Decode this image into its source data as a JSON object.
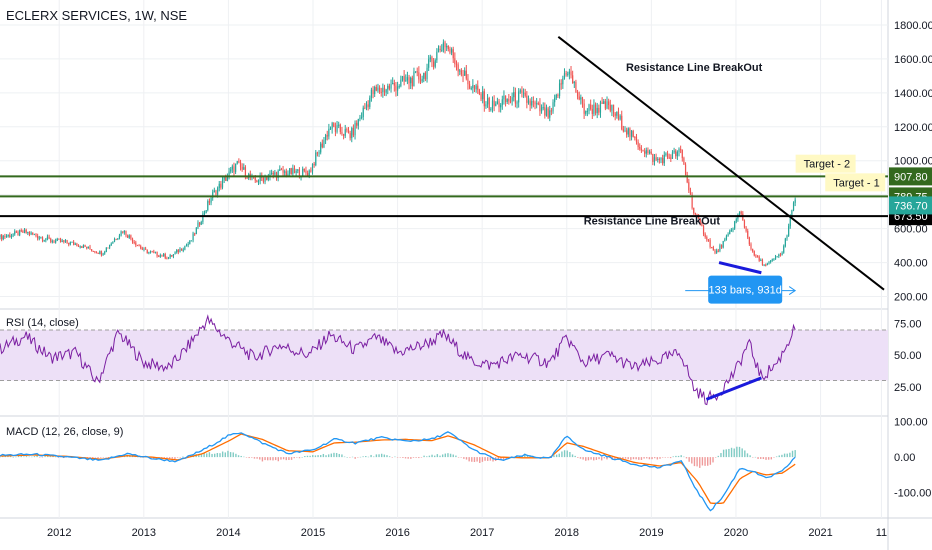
{
  "chart_data": {
    "type": "candlestick",
    "title": "ECLERX SERVICES, 1W, NSE",
    "x_ticks": [
      "2012",
      "2013",
      "2014",
      "2015",
      "2016",
      "2017",
      "2018",
      "2019",
      "2020",
      "2021",
      "11"
    ],
    "x_range": [
      2011.3,
      2021.75
    ],
    "colors": {
      "up": "#26a69a",
      "down": "#ef5350",
      "rsi": "#7b1fa2",
      "rsi_band": "#ede0f7",
      "macd": "#2196f3",
      "signal": "#ff6d00",
      "trend": "#000000",
      "target": "#33691e",
      "divergence": "#1a1adb",
      "measure": "#2196f3"
    },
    "price": {
      "ylim": [
        150,
        1900
      ],
      "y_ticks": [
        "200.00",
        "400.00",
        "600.00",
        "800.00",
        "1000.00",
        "1200.00",
        "1400.00",
        "1600.00",
        "1800.00"
      ],
      "closes": [
        {
          "date": 2011.3,
          "close": 550
        },
        {
          "date": 2011.6,
          "close": 580
        },
        {
          "date": 2011.9,
          "close": 530
        },
        {
          "date": 2012.2,
          "close": 510
        },
        {
          "date": 2012.5,
          "close": 455
        },
        {
          "date": 2012.75,
          "close": 590
        },
        {
          "date": 2013.0,
          "close": 470
        },
        {
          "date": 2013.3,
          "close": 430
        },
        {
          "date": 2013.55,
          "close": 520
        },
        {
          "date": 2013.8,
          "close": 790
        },
        {
          "date": 2014.1,
          "close": 980
        },
        {
          "date": 2014.3,
          "close": 880
        },
        {
          "date": 2014.6,
          "close": 930
        },
        {
          "date": 2014.95,
          "close": 930
        },
        {
          "date": 2015.2,
          "close": 1200
        },
        {
          "date": 2015.45,
          "close": 1150
        },
        {
          "date": 2015.7,
          "close": 1400
        },
        {
          "date": 2016.0,
          "close": 1450
        },
        {
          "date": 2016.3,
          "close": 1500
        },
        {
          "date": 2016.55,
          "close": 1700
        },
        {
          "date": 2016.85,
          "close": 1450
        },
        {
          "date": 2017.1,
          "close": 1320
        },
        {
          "date": 2017.45,
          "close": 1380
        },
        {
          "date": 2017.8,
          "close": 1260
        },
        {
          "date": 2018.0,
          "close": 1550
        },
        {
          "date": 2018.2,
          "close": 1300
        },
        {
          "date": 2018.5,
          "close": 1320
        },
        {
          "date": 2018.8,
          "close": 1120
        },
        {
          "date": 2019.05,
          "close": 1000
        },
        {
          "date": 2019.35,
          "close": 1050
        },
        {
          "date": 2019.5,
          "close": 700
        },
        {
          "date": 2019.75,
          "close": 450
        },
        {
          "date": 2019.9,
          "close": 550
        },
        {
          "date": 2020.05,
          "close": 700
        },
        {
          "date": 2020.2,
          "close": 450
        },
        {
          "date": 2020.35,
          "close": 380
        },
        {
          "date": 2020.55,
          "close": 460
        },
        {
          "date": 2020.7,
          "close": 780
        }
      ],
      "horizontal_lines": [
        {
          "value": 907.8,
          "label": "907.80",
          "kind": "target"
        },
        {
          "value": 789.75,
          "label": "789.75",
          "kind": "target"
        },
        {
          "value": 673.5,
          "label": "673.50",
          "kind": "resistance"
        }
      ],
      "last_price": {
        "value": 736.7,
        "label": "736.70"
      },
      "trendline": [
        {
          "date": 2017.9,
          "value": 1730
        },
        {
          "date": 2021.75,
          "value": 240
        }
      ],
      "divergence_line": [
        {
          "date": 2019.8,
          "value": 400
        },
        {
          "date": 2020.3,
          "value": 340
        }
      ],
      "measure": {
        "from": 2019.4,
        "to": 2020.7,
        "value": 235,
        "label": "133 bars, 931d"
      },
      "annotations": [
        {
          "text": "Resistance Line BreakOut",
          "date": 2018.7,
          "value": 1530
        },
        {
          "text": "Resistance Line BreakOut",
          "date": 2018.2,
          "value": 625
        },
        {
          "text": "Target - 2",
          "date": 2020.8,
          "value": 965
        },
        {
          "text": "Target - 1",
          "date": 2021.15,
          "value": 855
        }
      ]
    },
    "rsi": {
      "label": "RSI (14, close)",
      "ylim": [
        5,
        85
      ],
      "y_ticks": [
        "25.00",
        "50.00",
        "75.00"
      ],
      "band": [
        30,
        70
      ],
      "points": [
        {
          "date": 2011.3,
          "value": 55
        },
        {
          "date": 2011.6,
          "value": 65
        },
        {
          "date": 2011.9,
          "value": 48
        },
        {
          "date": 2012.2,
          "value": 52
        },
        {
          "date": 2012.45,
          "value": 28
        },
        {
          "date": 2012.7,
          "value": 68
        },
        {
          "date": 2013.0,
          "value": 44
        },
        {
          "date": 2013.3,
          "value": 40
        },
        {
          "date": 2013.5,
          "value": 55
        },
        {
          "date": 2013.75,
          "value": 78
        },
        {
          "date": 2014.0,
          "value": 62
        },
        {
          "date": 2014.3,
          "value": 48
        },
        {
          "date": 2014.6,
          "value": 58
        },
        {
          "date": 2014.95,
          "value": 50
        },
        {
          "date": 2015.2,
          "value": 66
        },
        {
          "date": 2015.5,
          "value": 54
        },
        {
          "date": 2015.75,
          "value": 64
        },
        {
          "date": 2016.0,
          "value": 52
        },
        {
          "date": 2016.3,
          "value": 58
        },
        {
          "date": 2016.55,
          "value": 66
        },
        {
          "date": 2016.85,
          "value": 46
        },
        {
          "date": 2017.1,
          "value": 42
        },
        {
          "date": 2017.45,
          "value": 50
        },
        {
          "date": 2017.8,
          "value": 44
        },
        {
          "date": 2018.0,
          "value": 64
        },
        {
          "date": 2018.2,
          "value": 44
        },
        {
          "date": 2018.5,
          "value": 50
        },
        {
          "date": 2018.8,
          "value": 40
        },
        {
          "date": 2019.05,
          "value": 45
        },
        {
          "date": 2019.35,
          "value": 52
        },
        {
          "date": 2019.5,
          "value": 24
        },
        {
          "date": 2019.65,
          "value": 15
        },
        {
          "date": 2019.8,
          "value": 20
        },
        {
          "date": 2020.0,
          "value": 38
        },
        {
          "date": 2020.15,
          "value": 60
        },
        {
          "date": 2020.3,
          "value": 32
        },
        {
          "date": 2020.5,
          "value": 45
        },
        {
          "date": 2020.7,
          "value": 72
        }
      ],
      "divergence_line": [
        {
          "date": 2019.65,
          "value": 15
        },
        {
          "date": 2020.3,
          "value": 32
        }
      ]
    },
    "macd": {
      "label": "MACD (12, 26, close, 9)",
      "ylim": [
        -160,
        110
      ],
      "y_ticks": [
        "100.00",
        "0.00",
        "-100.00"
      ],
      "points": [
        {
          "date": 2011.3,
          "macd": 5,
          "signal": 3
        },
        {
          "date": 2011.7,
          "macd": 8,
          "signal": 6
        },
        {
          "date": 2012.1,
          "macd": 0,
          "signal": 2
        },
        {
          "date": 2012.5,
          "macd": -10,
          "signal": -6
        },
        {
          "date": 2012.8,
          "macd": 10,
          "signal": 4
        },
        {
          "date": 2013.1,
          "macd": -4,
          "signal": 0
        },
        {
          "date": 2013.4,
          "macd": -12,
          "signal": -8
        },
        {
          "date": 2013.7,
          "macd": 20,
          "signal": 10
        },
        {
          "date": 2014.0,
          "macd": 60,
          "signal": 45
        },
        {
          "date": 2014.15,
          "macd": 70,
          "signal": 65
        },
        {
          "date": 2014.4,
          "macd": 40,
          "signal": 50
        },
        {
          "date": 2014.7,
          "macd": 10,
          "signal": 18
        },
        {
          "date": 2015.0,
          "macd": 20,
          "signal": 15
        },
        {
          "date": 2015.25,
          "macd": 50,
          "signal": 40
        },
        {
          "date": 2015.5,
          "macd": 40,
          "signal": 42
        },
        {
          "date": 2015.8,
          "macd": 55,
          "signal": 48
        },
        {
          "date": 2016.1,
          "macd": 45,
          "signal": 50
        },
        {
          "date": 2016.4,
          "macd": 50,
          "signal": 46
        },
        {
          "date": 2016.6,
          "macd": 70,
          "signal": 60
        },
        {
          "date": 2016.9,
          "macd": 20,
          "signal": 35
        },
        {
          "date": 2017.2,
          "macd": -10,
          "signal": 0
        },
        {
          "date": 2017.5,
          "macd": 5,
          "signal": -2
        },
        {
          "date": 2017.8,
          "macd": -5,
          "signal": -2
        },
        {
          "date": 2018.0,
          "macd": 60,
          "signal": 40
        },
        {
          "date": 2018.2,
          "macd": 20,
          "signal": 30
        },
        {
          "date": 2018.5,
          "macd": 0,
          "signal": 5
        },
        {
          "date": 2018.8,
          "macd": -20,
          "signal": -15
        },
        {
          "date": 2019.1,
          "macd": -30,
          "signal": -25
        },
        {
          "date": 2019.35,
          "macd": -10,
          "signal": -15
        },
        {
          "date": 2019.55,
          "macd": -100,
          "signal": -70
        },
        {
          "date": 2019.7,
          "macd": -150,
          "signal": -130
        },
        {
          "date": 2019.85,
          "macd": -110,
          "signal": -130
        },
        {
          "date": 2020.05,
          "macd": -30,
          "signal": -60
        },
        {
          "date": 2020.2,
          "macd": -40,
          "signal": -40
        },
        {
          "date": 2020.35,
          "macd": -60,
          "signal": -50
        },
        {
          "date": 2020.55,
          "macd": -40,
          "signal": -45
        },
        {
          "date": 2020.7,
          "macd": 0,
          "signal": -20
        }
      ]
    }
  }
}
